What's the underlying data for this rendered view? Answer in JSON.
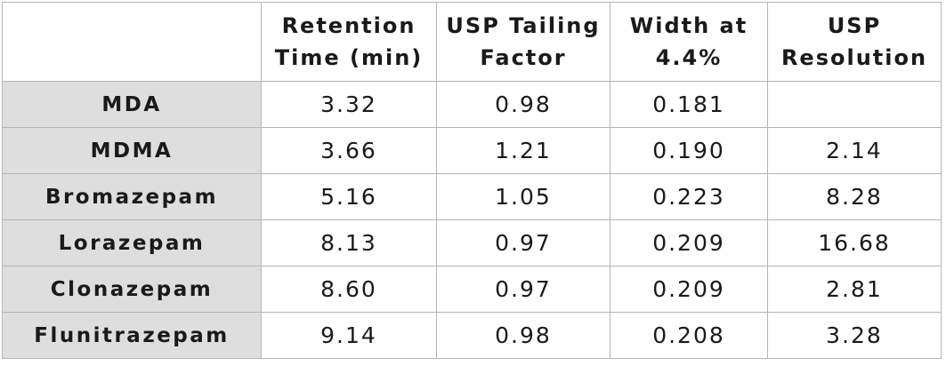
{
  "table": {
    "headers": [
      "",
      "Retention Time (min)",
      "USP Tailing Factor",
      "Width at 4.4%",
      "USP Resolution"
    ],
    "header_lines": [
      [],
      [
        "Retention",
        "Time (min)"
      ],
      [
        "USP Tailing",
        "Factor"
      ],
      [
        "Width at",
        "4.4%"
      ],
      [
        "USP",
        "Resolution"
      ]
    ],
    "rows": [
      [
        "MDA",
        "3.32",
        "0.98",
        "0.181",
        ""
      ],
      [
        "MDMA",
        "3.66",
        "1.21",
        "0.190",
        "2.14"
      ],
      [
        "Bromazepam",
        "5.16",
        "1.05",
        "0.223",
        "8.28"
      ],
      [
        "Lorazepam",
        "8.13",
        "0.97",
        "0.209",
        "16.68"
      ],
      [
        "Clonazepam",
        "8.60",
        "0.97",
        "0.209",
        "2.81"
      ],
      [
        "Flunitrazepam",
        "9.14",
        "0.98",
        "0.208",
        "3.28"
      ]
    ]
  }
}
